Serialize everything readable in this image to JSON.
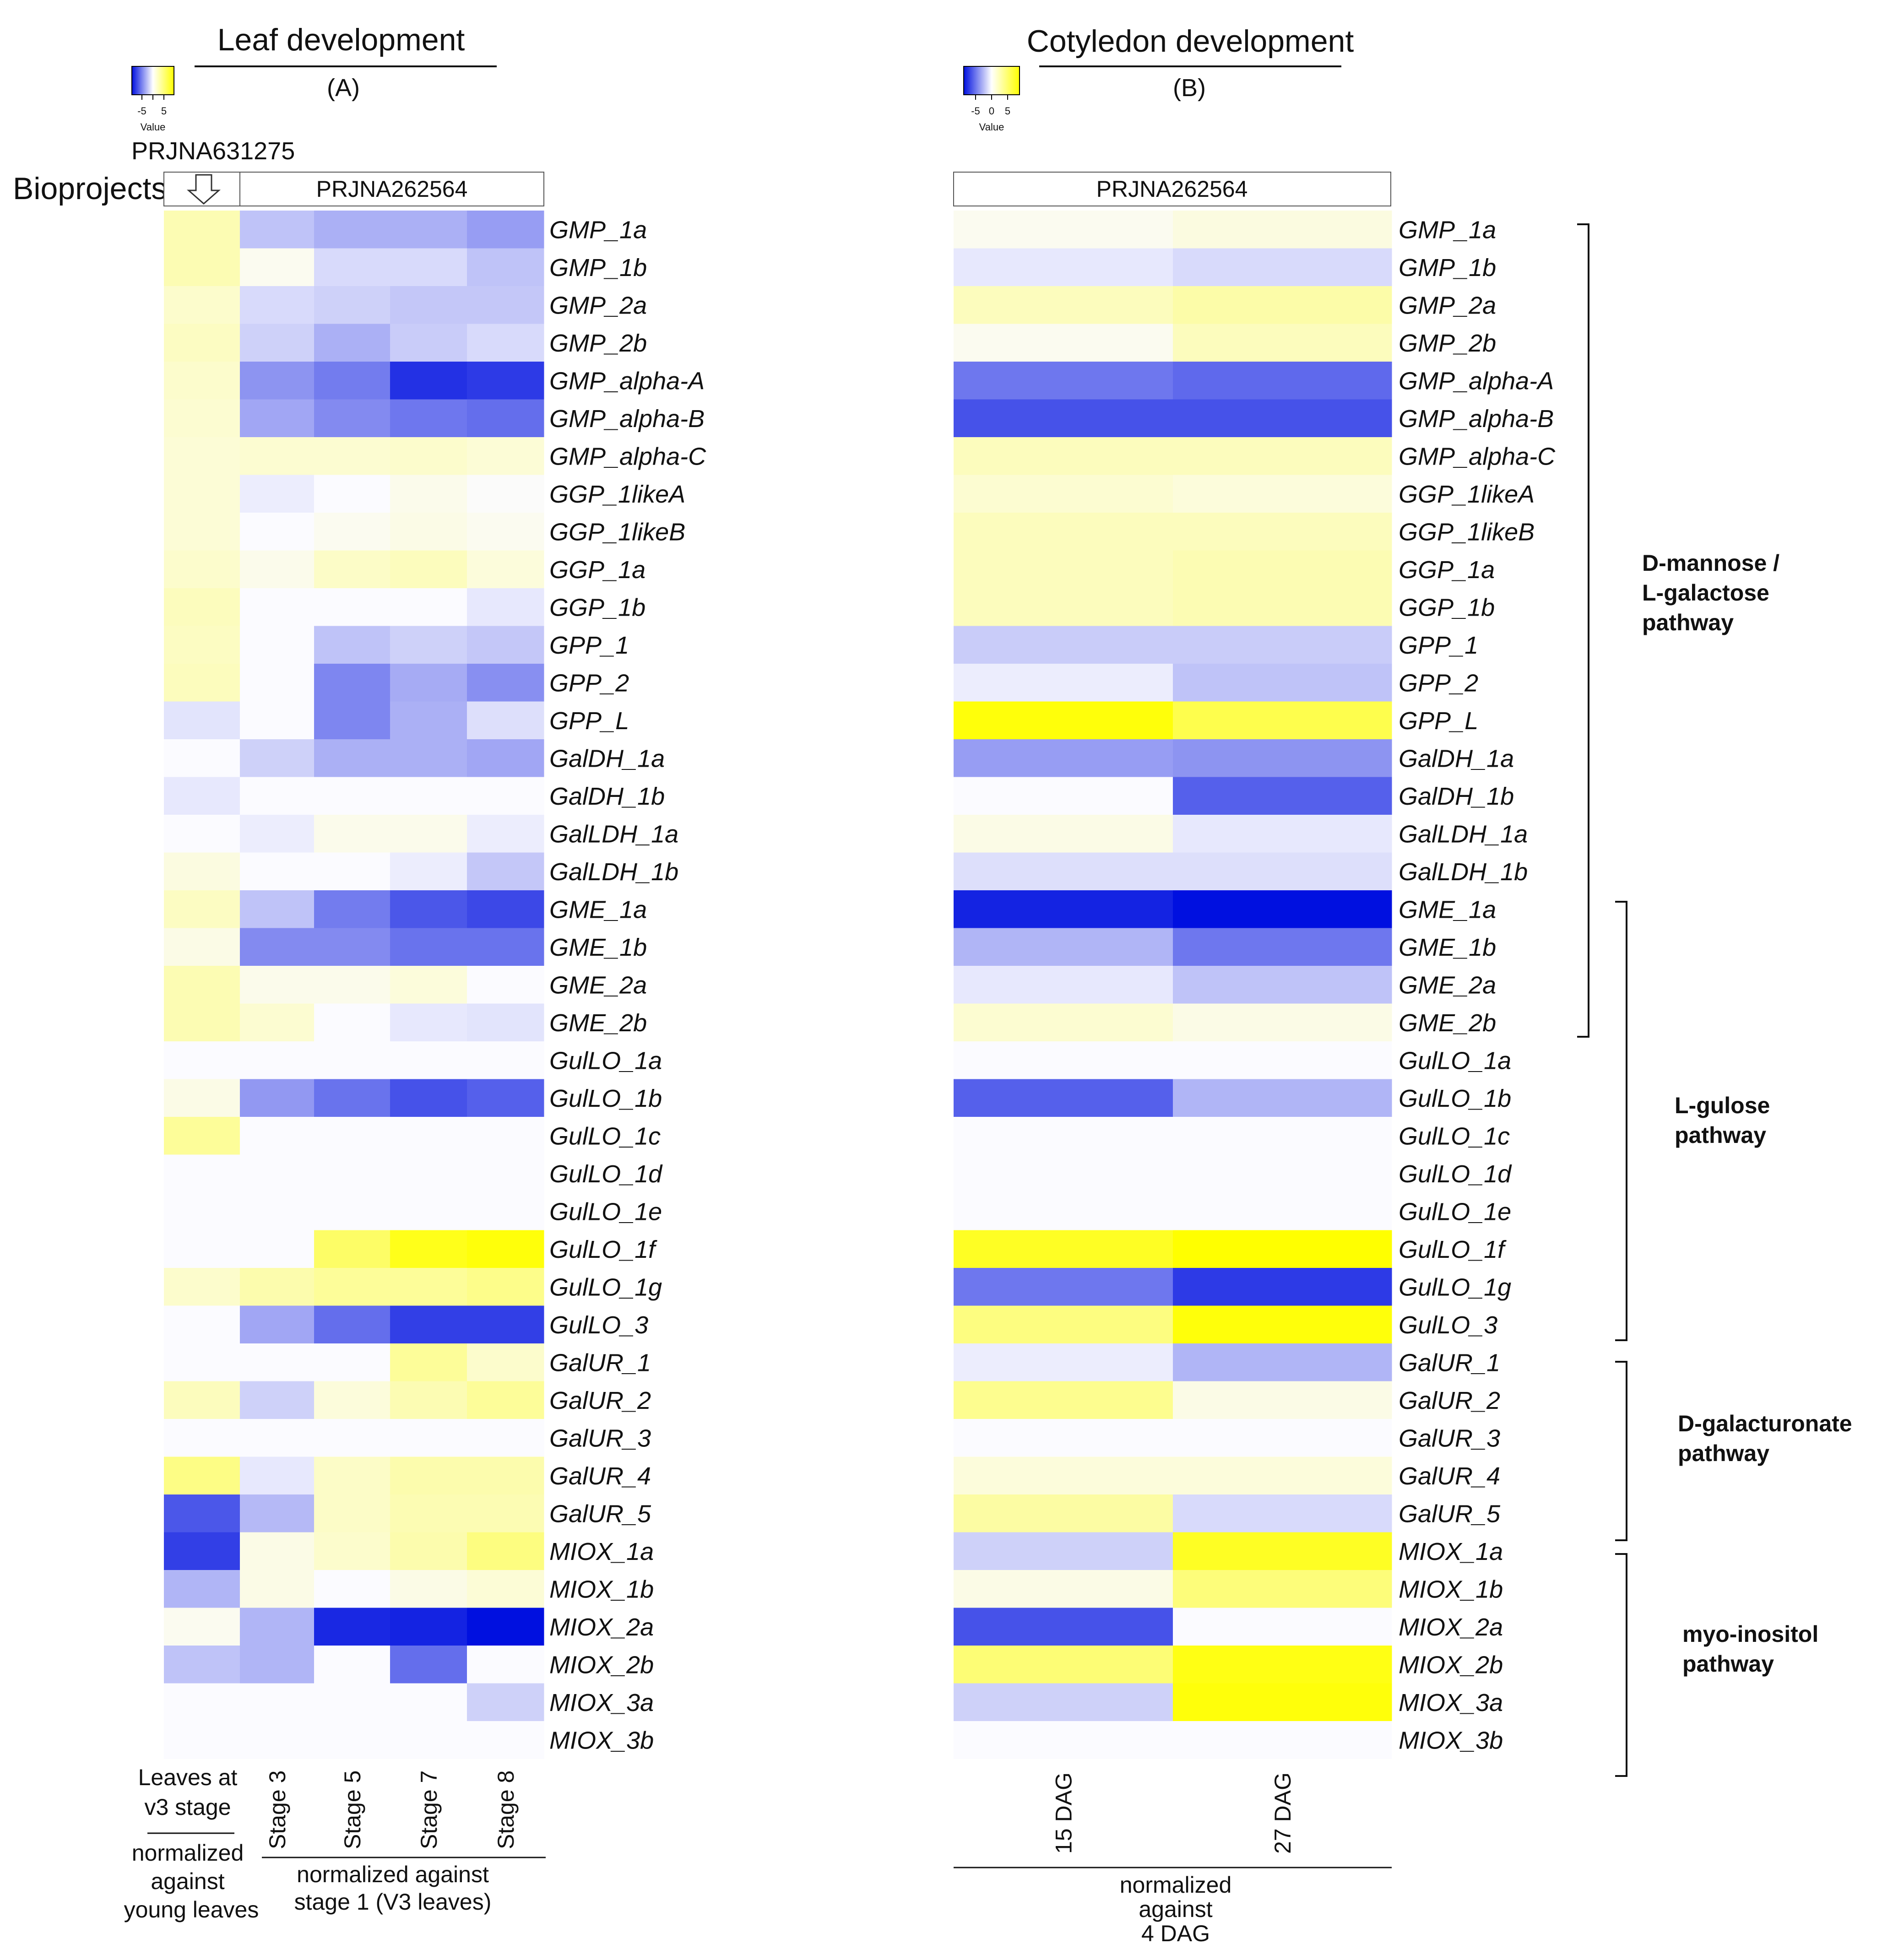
{
  "panels": {
    "a": {
      "title": "Leaf development",
      "letter": "(A)",
      "scale_ticks": [
        "-5",
        "5"
      ],
      "scale_label": "Value"
    },
    "b": {
      "title": "Cotyledon development",
      "letter": "(B)",
      "scale_ticks": [
        "-5",
        "0",
        "5"
      ],
      "scale_label": "Value"
    }
  },
  "bioprojects": {
    "label": "Bioprojects",
    "a_left": "PRJNA631275",
    "a_right": "PRJNA262564",
    "b": "PRJNA262564"
  },
  "bottom": {
    "a_col1_l1": "Leaves at",
    "a_col1_l2": "v3 stage",
    "a_col1_note1": "normalized",
    "a_col1_note2": "against",
    "a_col1_note3": "young leaves",
    "a_stages_note1": "normalized against",
    "a_stages_note2": "stage 1 (V3 leaves)",
    "b_note1": "normalized",
    "b_note2": "against",
    "b_note3": "4 DAG"
  },
  "pathways": {
    "p1_l1": "D-mannose /",
    "p1_l2": "L-galactose",
    "p1_l3": "pathway",
    "p2_l1": "L-gulose",
    "p2_l2": "pathway",
    "p3_l1": "D-galacturonate",
    "p3_l2": "pathway",
    "p4_l1": "myo-inositol",
    "p4_l2": "pathway"
  },
  "colors": {
    "low": "#0010e0",
    "mid": "#fbfbff",
    "high": "#ffff00"
  },
  "chart_data": [
    {
      "type": "heatmap",
      "title": "Leaf development (A)",
      "value_range": [
        -5,
        5
      ],
      "columns": [
        "Leaves at v3 stage",
        "Stage 3",
        "Stage 5",
        "Stage 7",
        "Stage 8"
      ],
      "rows": [
        "GMP_1a",
        "GMP_1b",
        "GMP_2a",
        "GMP_2b",
        "GMP_alpha-A",
        "GMP_alpha-B",
        "GMP_alpha-C",
        "GGP_1likeA",
        "GGP_1likeB",
        "GGP_1a",
        "GGP_1b",
        "GPP_1",
        "GPP_2",
        "GPP_L",
        "GalDH_1a",
        "GalDH_1b",
        "GalLDH_1a",
        "GalLDH_1b",
        "GME_1a",
        "GME_1b",
        "GME_2a",
        "GME_2b",
        "GulLO_1a",
        "GulLO_1b",
        "GulLO_1c",
        "GulLO_1d",
        "GulLO_1e",
        "GulLO_1f",
        "GulLO_1g",
        "GulLO_3",
        "GalUR_1",
        "GalUR_2",
        "GalUR_3",
        "GalUR_4",
        "GalUR_5",
        "MIOX_1a",
        "MIOX_1b",
        "MIOX_2a",
        "MIOX_2b",
        "MIOX_3a",
        "MIOX_3b"
      ],
      "values": [
        [
          1.5,
          -1.2,
          -1.6,
          -1.6,
          -2.0
        ],
        [
          1.5,
          0.3,
          -0.7,
          -0.7,
          -1.2
        ],
        [
          1.0,
          -0.7,
          -0.9,
          -1.1,
          -1.1
        ],
        [
          1.2,
          -0.9,
          -1.6,
          -1.0,
          -0.7
        ],
        [
          1.0,
          -2.2,
          -2.7,
          -4.3,
          -4.1
        ],
        [
          0.9,
          -1.8,
          -2.4,
          -2.8,
          -3.0
        ],
        [
          0.8,
          0.9,
          0.9,
          1.0,
          0.8
        ],
        [
          0.8,
          -0.3,
          0.0,
          0.4,
          0.1
        ],
        [
          0.8,
          0.0,
          0.3,
          0.5,
          0.3
        ],
        [
          1.0,
          0.4,
          1.1,
          1.3,
          0.7
        ],
        [
          1.3,
          0.0,
          0.0,
          0.0,
          -0.4
        ],
        [
          1.2,
          0.0,
          -1.2,
          -0.9,
          -1.1
        ],
        [
          1.3,
          0.0,
          -2.5,
          -1.7,
          -2.3
        ],
        [
          -0.5,
          0.0,
          -2.5,
          -1.6,
          -0.6
        ],
        [
          0.0,
          -0.9,
          -1.6,
          -1.6,
          -1.8
        ],
        [
          -0.4,
          0.0,
          0.0,
          0.0,
          0.0
        ],
        [
          0.0,
          -0.3,
          0.4,
          0.4,
          -0.3
        ],
        [
          0.6,
          0.0,
          0.0,
          -0.3,
          -1.1
        ],
        [
          1.2,
          -1.2,
          -2.7,
          -3.5,
          -3.8
        ],
        [
          0.5,
          -2.4,
          -2.4,
          -2.9,
          -2.9
        ],
        [
          1.5,
          0.4,
          0.4,
          0.7,
          0.0
        ],
        [
          1.5,
          0.9,
          0.0,
          -0.4,
          -0.5
        ],
        [
          0.0,
          0.0,
          0.0,
          0.0,
          0.0
        ],
        [
          0.5,
          -2.1,
          -2.9,
          -3.6,
          -3.3
        ],
        [
          2.0,
          0.0,
          0.0,
          0.0,
          0.0
        ],
        [
          0.0,
          0.0,
          0.0,
          0.0,
          0.0
        ],
        [
          0.0,
          0.0,
          0.0,
          0.0,
          0.0
        ],
        [
          0.0,
          0.0,
          3.0,
          4.5,
          4.8
        ],
        [
          1.0,
          1.6,
          2.0,
          2.0,
          2.3
        ],
        [
          0.0,
          -1.8,
          -3.0,
          -4.0,
          -4.0
        ],
        [
          0.0,
          0.0,
          0.0,
          2.0,
          1.0
        ],
        [
          1.3,
          -0.9,
          0.7,
          1.5,
          2.0
        ],
        [
          0.0,
          0.0,
          0.0,
          0.0,
          0.0
        ],
        [
          2.4,
          -0.4,
          1.1,
          1.6,
          1.6
        ],
        [
          -3.5,
          -1.4,
          1.1,
          1.5,
          1.5
        ],
        [
          -4.0,
          0.5,
          1.0,
          1.6,
          2.5
        ],
        [
          -1.5,
          0.5,
          0.0,
          0.5,
          0.8
        ],
        [
          0.3,
          -1.5,
          -4.5,
          -4.6,
          -5.0
        ],
        [
          -1.2,
          -1.5,
          0.0,
          -3.0,
          0.0
        ],
        [
          0.0,
          0.0,
          0.0,
          0.0,
          -0.9
        ],
        [
          0.0,
          0.0,
          0.0,
          0.0,
          0.0
        ]
      ]
    },
    {
      "type": "heatmap",
      "title": "Cotyledon development (B)",
      "value_range": [
        -5,
        5
      ],
      "columns": [
        "15 DAG",
        "27 DAG"
      ],
      "rows": [
        "GMP_1a",
        "GMP_1b",
        "GMP_2a",
        "GMP_2b",
        "GMP_alpha-A",
        "GMP_alpha-B",
        "GMP_alpha-C",
        "GGP_1likeA",
        "GGP_1likeB",
        "GGP_1a",
        "GGP_1b",
        "GPP_1",
        "GPP_2",
        "GPP_L",
        "GalDH_1a",
        "GalDH_1b",
        "GalLDH_1a",
        "GalLDH_1b",
        "GME_1a",
        "GME_1b",
        "GME_2a",
        "GME_2b",
        "GulLO_1a",
        "GulLO_1b",
        "GulLO_1c",
        "GulLO_1d",
        "GulLO_1e",
        "GulLO_1f",
        "GulLO_1g",
        "GulLO_3",
        "GalUR_1",
        "GalUR_2",
        "GalUR_3",
        "GalUR_4",
        "GalUR_5",
        "MIOX_1a",
        "MIOX_1b",
        "MIOX_2a",
        "MIOX_2b",
        "MIOX_3a",
        "MIOX_3b"
      ],
      "values": [
        [
          0.3,
          0.6
        ],
        [
          -0.4,
          -0.7
        ],
        [
          1.3,
          1.7
        ],
        [
          0.3,
          1.3
        ],
        [
          -2.8,
          -3.1
        ],
        [
          -3.6,
          -3.6
        ],
        [
          1.3,
          1.3
        ],
        [
          0.9,
          0.7
        ],
        [
          1.3,
          1.3
        ],
        [
          1.3,
          1.5
        ],
        [
          1.3,
          1.5
        ],
        [
          -1.0,
          -1.0
        ],
        [
          -0.3,
          -1.2
        ],
        [
          4.8,
          3.5
        ],
        [
          -2.0,
          -2.2
        ],
        [
          0.0,
          -3.3
        ],
        [
          0.5,
          -0.4
        ],
        [
          -0.6,
          -0.6
        ],
        [
          -4.6,
          -5.0
        ],
        [
          -1.5,
          -2.8
        ],
        [
          -0.4,
          -1.2
        ],
        [
          0.9,
          0.5
        ],
        [
          0.0,
          0.0
        ],
        [
          -3.3,
          -1.5
        ],
        [
          0.0,
          0.0
        ],
        [
          0.0,
          0.0
        ],
        [
          0.0,
          0.0
        ],
        [
          4.3,
          5.0
        ],
        [
          -2.8,
          -4.1
        ],
        [
          2.5,
          4.8
        ],
        [
          -0.3,
          -1.5
        ],
        [
          2.2,
          0.5
        ],
        [
          0.0,
          0.0
        ],
        [
          0.7,
          0.7
        ],
        [
          1.8,
          -0.7
        ],
        [
          -0.9,
          4.3
        ],
        [
          0.5,
          2.6
        ],
        [
          -3.6,
          0.0
        ],
        [
          2.7,
          4.6
        ],
        [
          -0.9,
          4.8
        ],
        [
          0.0,
          0.0
        ]
      ]
    }
  ]
}
